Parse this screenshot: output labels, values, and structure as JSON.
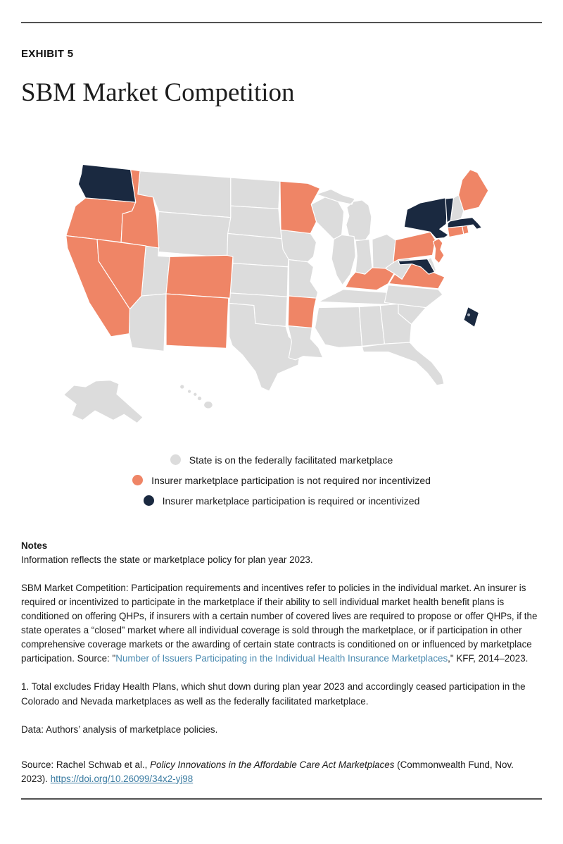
{
  "page": {
    "exhibit_label": "EXHIBIT 5",
    "title": "SBM Market Competition"
  },
  "colors": {
    "ffm_gray": "#dcdcdc",
    "not_required_orange": "#ef8566",
    "required_navy": "#1a2940",
    "rule_gray": "#525252",
    "link_blue": "#4a8ab0",
    "doi_link_blue": "#3a7ba1"
  },
  "chart_data": {
    "type": "heatmap",
    "subtype": "us-state-choropleth",
    "title": "SBM Market Competition",
    "legend_position": "bottom-center",
    "categories": [
      {
        "id": "ffm",
        "label": "State is on the federally facilitated marketplace",
        "color": "#dcdcdc"
      },
      {
        "id": "not_required",
        "label": "Insurer marketplace participation is not required nor incentivized",
        "color": "#ef8566"
      },
      {
        "id": "required",
        "label": "Insurer marketplace participation is required or incentivized",
        "color": "#1a2940"
      }
    ],
    "states": {
      "AL": "ffm",
      "AK": "ffm",
      "AZ": "ffm",
      "AR": "not_required",
      "CA": "not_required",
      "CO": "not_required",
      "CT": "not_required",
      "DE": "ffm",
      "DC": "required",
      "FL": "ffm",
      "GA": "ffm",
      "HI": "ffm",
      "ID": "not_required",
      "IL": "ffm",
      "IN": "ffm",
      "IA": "ffm",
      "KS": "ffm",
      "KY": "not_required",
      "LA": "ffm",
      "ME": "not_required",
      "MD": "required",
      "MA": "required",
      "MI": "ffm",
      "MN": "not_required",
      "MS": "ffm",
      "MO": "ffm",
      "MT": "ffm",
      "NE": "ffm",
      "NV": "not_required",
      "NH": "ffm",
      "NJ": "not_required",
      "NM": "not_required",
      "NY": "required",
      "NC": "ffm",
      "ND": "ffm",
      "OH": "ffm",
      "OK": "ffm",
      "OR": "not_required",
      "PA": "not_required",
      "RI": "not_required",
      "SC": "ffm",
      "SD": "ffm",
      "TN": "ffm",
      "TX": "ffm",
      "UT": "ffm",
      "VT": "required",
      "VA": "not_required",
      "WA": "required",
      "WV": "ffm",
      "WI": "ffm",
      "WY": "ffm"
    }
  },
  "notes": {
    "heading": "Notes",
    "para1": "Information reflects the state or marketplace policy for plan year 2023.",
    "para2_before_link": "SBM Market Competition: Participation requirements and incentives refer to policies in the individual market. An insurer is required or incentivized to participate in the marketplace if their ability to sell individual market health benefit plans is conditioned on offering QHPs, if insurers with a certain number of covered lives are required to propose or offer QHPs, if the state operates a “closed” market where all individual coverage is sold through the marketplace, or if participation in other comprehensive coverage markets or the awarding of certain state contracts is conditioned on or influenced by marketplace participation. Source: \"",
    "para2_link": "Number of Issuers Participating in the Individual Health Insurance Marketplaces",
    "para2_after_link": ",\" KFF, 2014–2023.",
    "para3": "1. Total excludes Friday Health Plans, which shut down during plan year 2023 and accordingly ceased participation in the Colorado and Nevada marketplaces as well as the federally facilitated marketplace.",
    "para4": "Data: Authors’ analysis of marketplace policies."
  },
  "source": {
    "prefix": "Source: Rachel Schwab et al., ",
    "italic_title": "Policy Innovations in the Affordable Care Act Marketplaces",
    "suffix": " (Commonwealth Fund, Nov. 2023). ",
    "link": "https://doi.org/10.26099/34x2-yj98"
  }
}
